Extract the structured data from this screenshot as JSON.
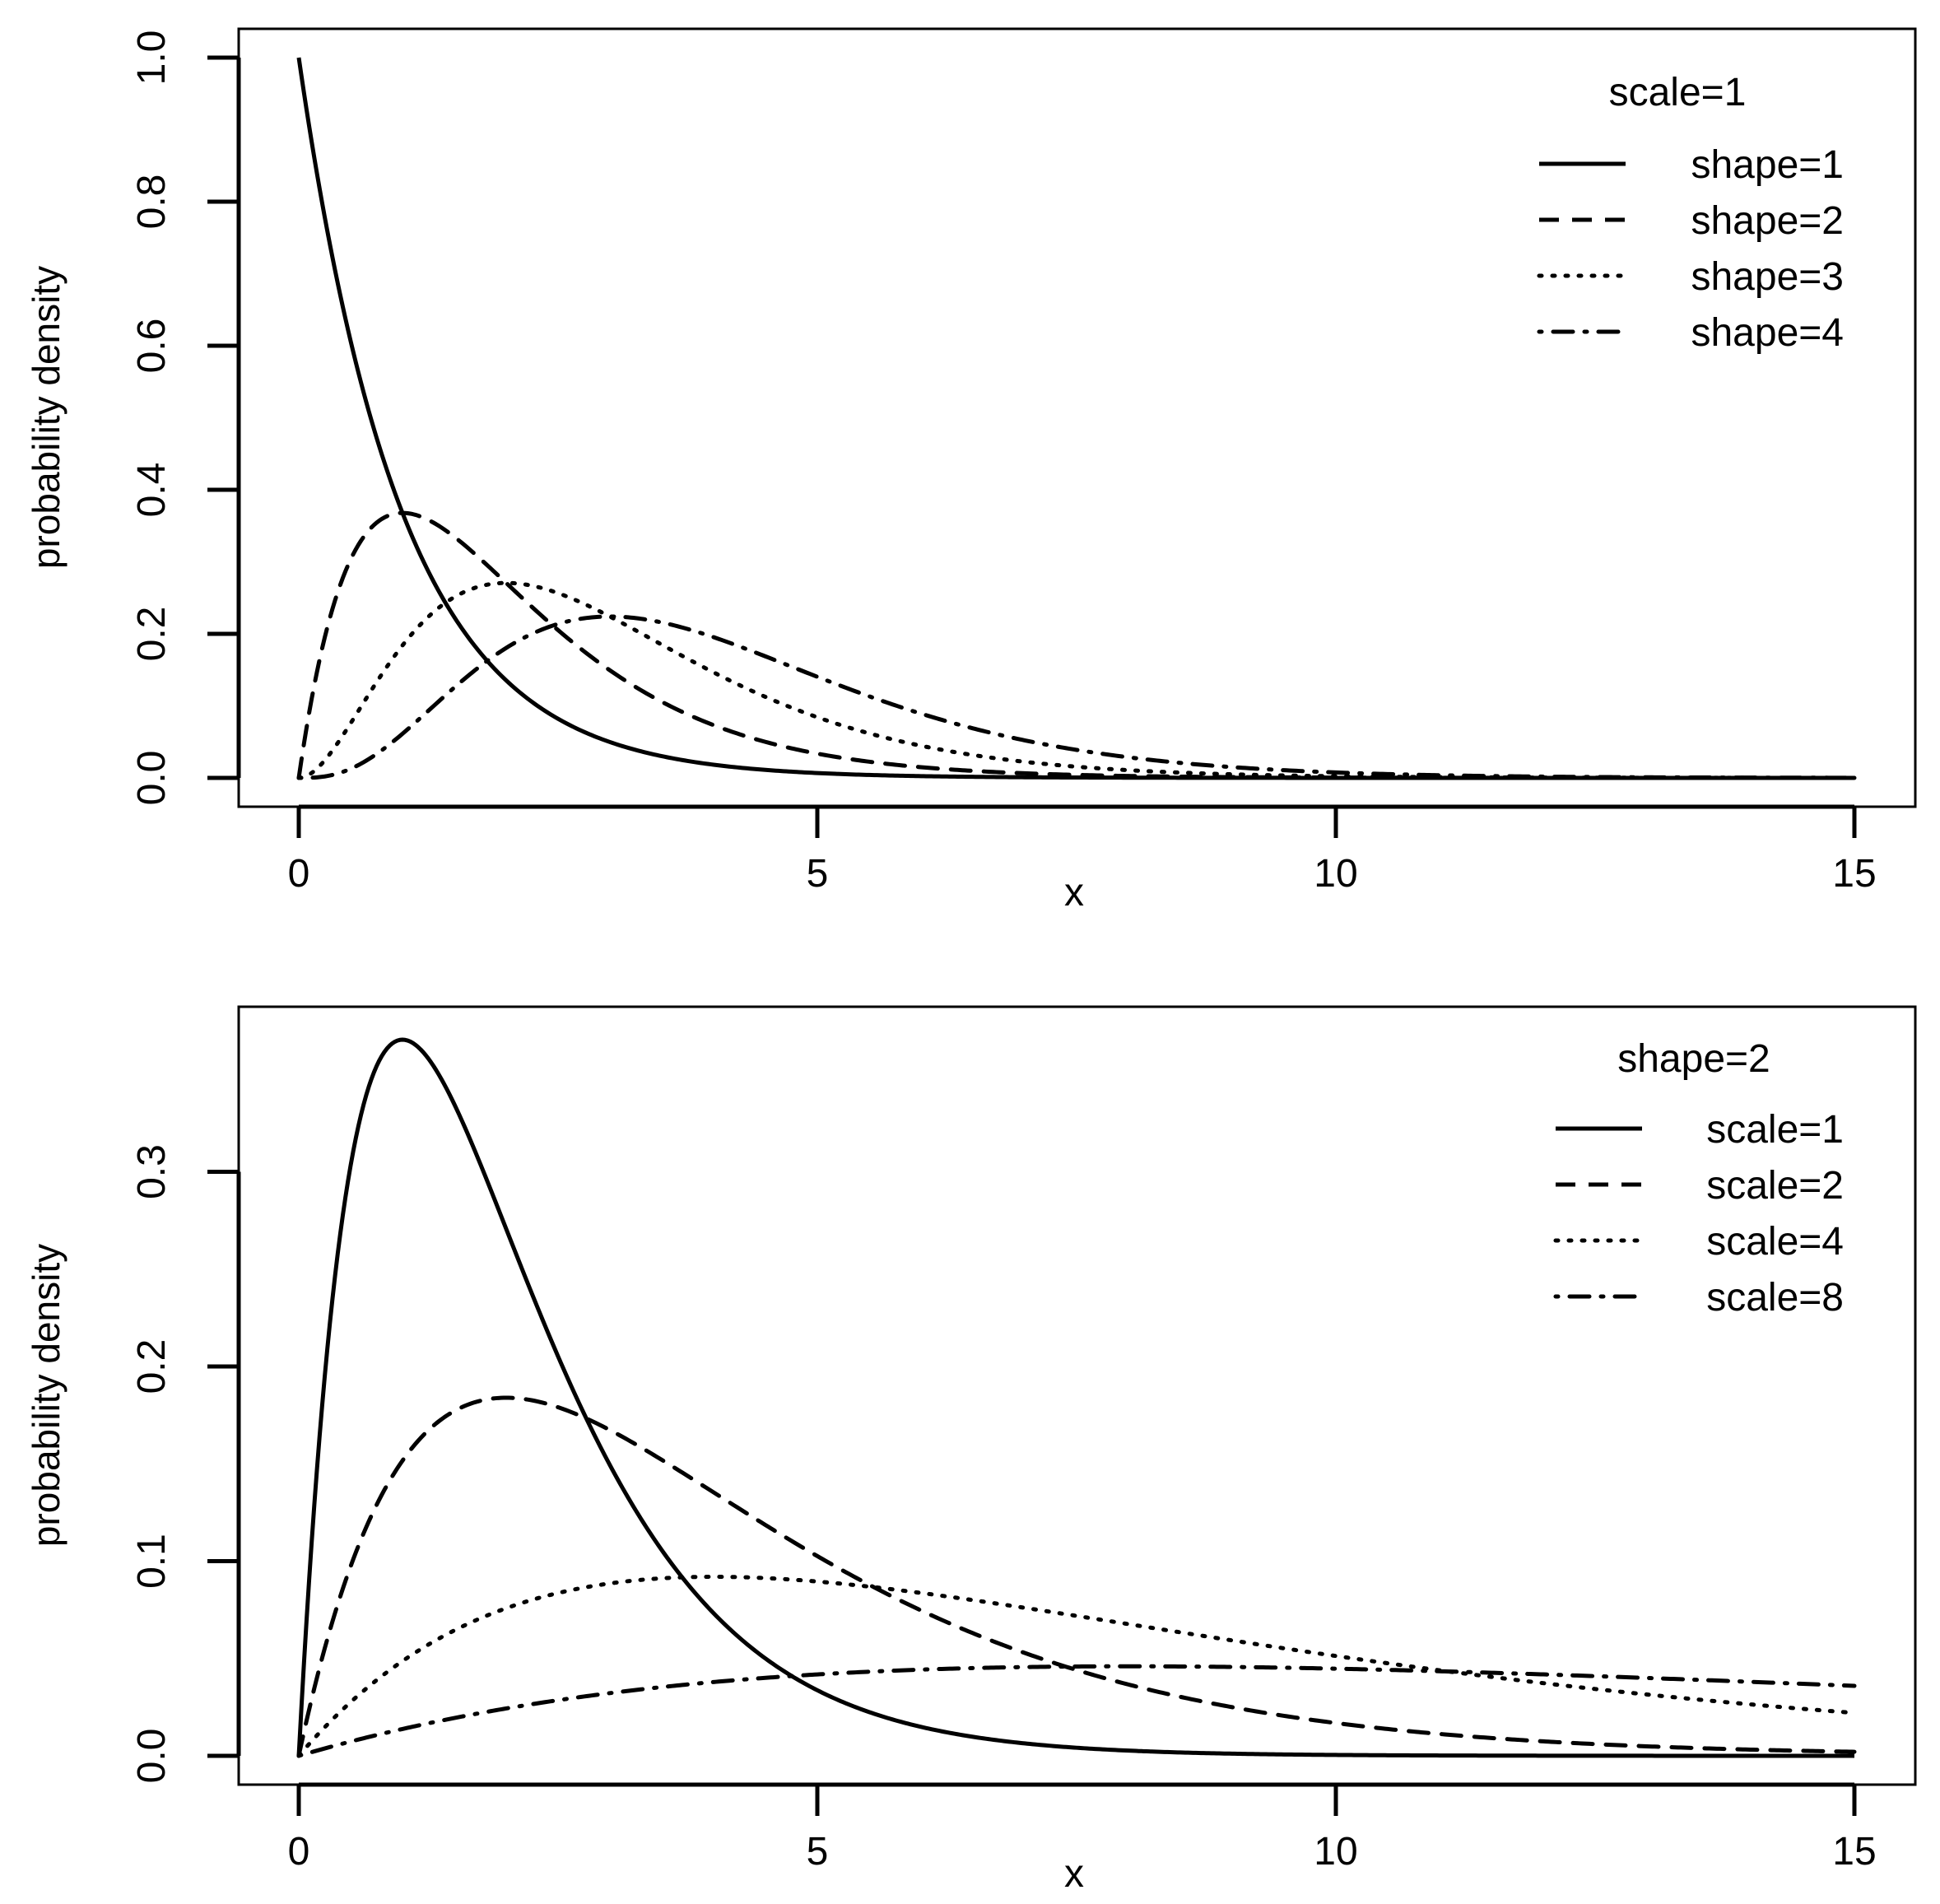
{
  "chart_data": [
    {
      "type": "line",
      "xlabel": "x",
      "ylabel": "probability density",
      "xlim": [
        0,
        15
      ],
      "ylim": [
        0,
        1.0
      ],
      "x_ticks": [
        "0",
        "5",
        "10",
        "15"
      ],
      "y_ticks": [
        "0.0",
        "0.2",
        "0.4",
        "0.6",
        "0.8",
        "1.0"
      ],
      "legend": {
        "title": "scale=1",
        "position": "top-right",
        "entries": [
          "shape=1",
          "shape=2",
          "shape=3",
          "shape=4"
        ]
      },
      "series": [
        {
          "name": "shape=1",
          "style": "solid",
          "shape": 1,
          "scale": 1,
          "x": [
            0,
            0.5,
            1,
            1.5,
            2,
            3,
            4,
            5,
            6,
            8,
            10,
            15
          ],
          "y": [
            1.0,
            0.607,
            0.368,
            0.223,
            0.135,
            0.05,
            0.018,
            0.007,
            0.002,
            0.0,
            0.0,
            0.0
          ]
        },
        {
          "name": "shape=2",
          "style": "dashed",
          "shape": 2,
          "scale": 1,
          "x": [
            0,
            0.5,
            1,
            1.5,
            2,
            3,
            4,
            5,
            6,
            8,
            10,
            15
          ],
          "y": [
            0.0,
            0.303,
            0.368,
            0.335,
            0.271,
            0.149,
            0.073,
            0.034,
            0.015,
            0.003,
            0.0,
            0.0
          ]
        },
        {
          "name": "shape=3",
          "style": "dotted",
          "shape": 3,
          "scale": 1,
          "x": [
            0,
            1,
            2,
            3,
            4,
            5,
            6,
            8,
            10,
            15
          ],
          "y": [
            0.0,
            0.184,
            0.271,
            0.224,
            0.147,
            0.084,
            0.045,
            0.011,
            0.002,
            0.0
          ]
        },
        {
          "name": "shape=4",
          "style": "dotdash",
          "shape": 4,
          "scale": 1,
          "x": [
            0,
            1,
            2,
            3,
            4,
            5,
            6,
            8,
            10,
            15
          ],
          "y": [
            0.0,
            0.061,
            0.18,
            0.224,
            0.195,
            0.14,
            0.089,
            0.029,
            0.008,
            0.0
          ]
        }
      ]
    },
    {
      "type": "line",
      "xlabel": "x",
      "ylabel": "probability density",
      "xlim": [
        0,
        15
      ],
      "ylim": [
        0,
        0.37
      ],
      "x_ticks": [
        "0",
        "5",
        "10",
        "15"
      ],
      "y_ticks": [
        "0.0",
        "0.1",
        "0.2",
        "0.3"
      ],
      "legend": {
        "title": "shape=2",
        "position": "top-right",
        "entries": [
          "scale=1",
          "scale=2",
          "scale=4",
          "scale=8"
        ]
      },
      "series": [
        {
          "name": "scale=1",
          "style": "solid",
          "shape": 2,
          "scale": 1,
          "x": [
            0,
            0.5,
            1,
            2,
            3,
            4,
            5,
            6,
            8,
            10,
            15
          ],
          "y": [
            0.0,
            0.303,
            0.368,
            0.271,
            0.149,
            0.073,
            0.034,
            0.015,
            0.003,
            0.0,
            0.0
          ]
        },
        {
          "name": "scale=2",
          "style": "dashed",
          "shape": 2,
          "scale": 2,
          "x": [
            0,
            1,
            2,
            3,
            4,
            5,
            6,
            8,
            10,
            12,
            15
          ],
          "y": [
            0.0,
            0.152,
            0.184,
            0.167,
            0.135,
            0.103,
            0.075,
            0.037,
            0.017,
            0.007,
            0.002
          ]
        },
        {
          "name": "scale=4",
          "style": "dotted",
          "shape": 2,
          "scale": 4,
          "x": [
            0,
            1,
            2,
            4,
            6,
            8,
            10,
            12,
            15
          ],
          "y": [
            0.0,
            0.049,
            0.076,
            0.092,
            0.084,
            0.068,
            0.051,
            0.037,
            0.022
          ]
        },
        {
          "name": "scale=8",
          "style": "dotdash",
          "shape": 2,
          "scale": 8,
          "x": [
            0,
            2,
            4,
            6,
            8,
            10,
            12,
            15
          ],
          "y": [
            0.0,
            0.024,
            0.038,
            0.044,
            0.046,
            0.045,
            0.042,
            0.036
          ]
        }
      ]
    }
  ]
}
